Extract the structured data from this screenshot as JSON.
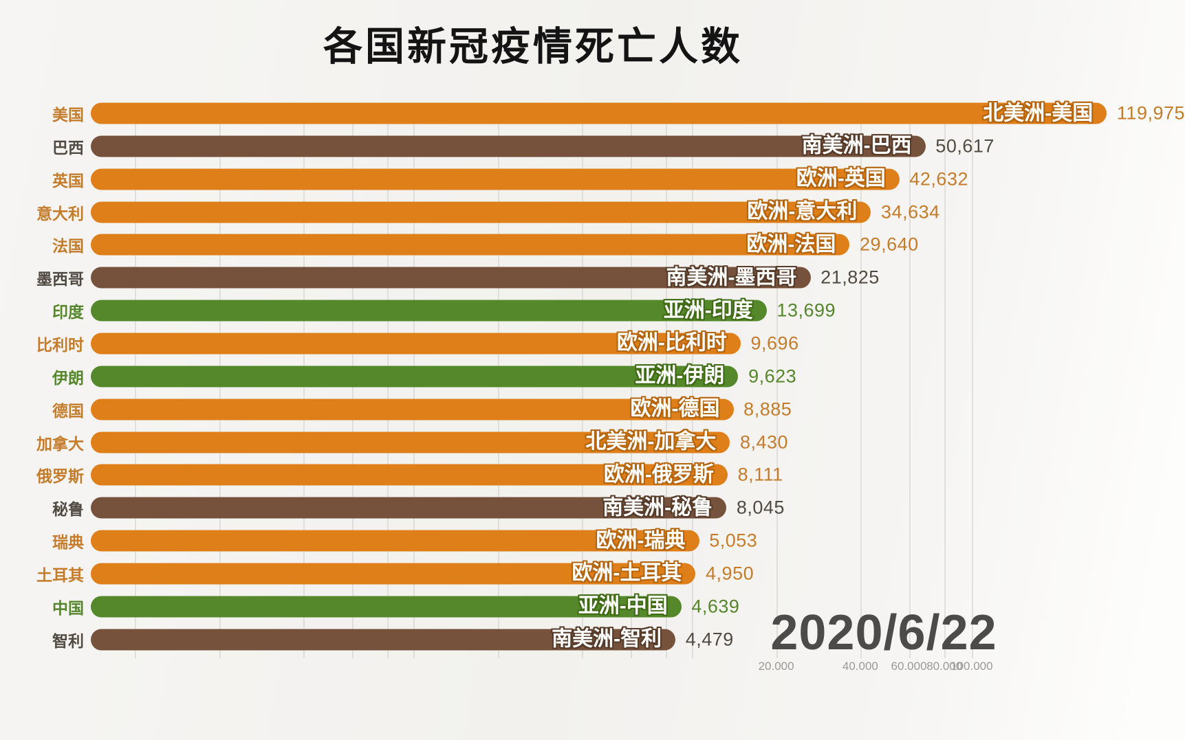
{
  "colors": {
    "title": "#141414",
    "date": "#4C4B49",
    "tick": "#9B9995",
    "gridline": "#DCDAD6",
    "groups": {
      "orange": {
        "bar": "#DE7F1A",
        "outline": "#B5650E",
        "text": "#C47C2B"
      },
      "brown": {
        "bar": "#76523C",
        "outline": "#573B29",
        "text": "#504A42"
      },
      "green": {
        "bar": "#55882A",
        "outline": "#3F6B14",
        "text": "#55862B"
      }
    }
  },
  "chart_data": {
    "type": "bar",
    "orientation": "horizontal",
    "title": "各国新冠疫情死亡人数",
    "date_label": "2020/6/22",
    "legend": "color encodes continent: orange = 欧洲/北美洲, brown = 南美洲, green = 亚洲",
    "x_axis": {
      "scale": "log-like (animated bar-race frame)",
      "ticks": [
        {
          "label": "20.000",
          "value": 20000,
          "pos_pct": 65.5
        },
        {
          "label": "40.000",
          "value": 40000,
          "pos_pct": 72.6
        },
        {
          "label": "60.000",
          "value": 60000,
          "pos_pct": 76.7
        },
        {
          "label": "80.000",
          "value": 80000,
          "pos_pct": 79.7
        },
        {
          "label": "100.000",
          "value": 100000,
          "pos_pct": 82.0
        }
      ]
    },
    "grid_minor_pct": [
      11.4,
      18.5,
      25.6,
      29.7,
      32.7,
      34.9,
      42.0,
      49.1,
      53.2,
      56.2,
      58.4
    ],
    "bar_left_pct": 7.66,
    "bars": [
      {
        "rank": 1,
        "country": "美国",
        "continent": "北美洲",
        "bar_label": "北美洲-美国",
        "value": 119975,
        "value_label": "119,975",
        "group": "orange",
        "tip_pct": 93.4
      },
      {
        "rank": 2,
        "country": "巴西",
        "continent": "南美洲",
        "bar_label": "南美洲-巴西",
        "value": 50617,
        "value_label": "50,617",
        "group": "brown",
        "tip_pct": 78.1
      },
      {
        "rank": 3,
        "country": "英国",
        "continent": "欧洲",
        "bar_label": "欧洲-英国",
        "value": 42632,
        "value_label": "42,632",
        "group": "orange",
        "tip_pct": 75.9
      },
      {
        "rank": 4,
        "country": "意大利",
        "continent": "欧洲",
        "bar_label": "欧洲-意大利",
        "value": 34634,
        "value_label": "34,634",
        "group": "orange",
        "tip_pct": 73.5
      },
      {
        "rank": 5,
        "country": "法国",
        "continent": "欧洲",
        "bar_label": "欧洲-法国",
        "value": 29640,
        "value_label": "29,640",
        "group": "orange",
        "tip_pct": 71.7
      },
      {
        "rank": 6,
        "country": "墨西哥",
        "continent": "南美洲",
        "bar_label": "南美洲-墨西哥",
        "value": 21825,
        "value_label": "21,825",
        "group": "brown",
        "tip_pct": 68.4
      },
      {
        "rank": 7,
        "country": "印度",
        "continent": "亚洲",
        "bar_label": "亚洲-印度",
        "value": 13699,
        "value_label": "13,699",
        "group": "green",
        "tip_pct": 64.7
      },
      {
        "rank": 8,
        "country": "比利时",
        "continent": "欧洲",
        "bar_label": "欧洲-比利时",
        "value": 9696,
        "value_label": "9,696",
        "group": "orange",
        "tip_pct": 62.5
      },
      {
        "rank": 9,
        "country": "伊朗",
        "continent": "亚洲",
        "bar_label": "亚洲-伊朗",
        "value": 9623,
        "value_label": "9,623",
        "group": "green",
        "tip_pct": 62.3
      },
      {
        "rank": 10,
        "country": "德国",
        "continent": "欧洲",
        "bar_label": "欧洲-德国",
        "value": 8885,
        "value_label": "8,885",
        "group": "orange",
        "tip_pct": 61.9
      },
      {
        "rank": 11,
        "country": "加拿大",
        "continent": "北美洲",
        "bar_label": "北美洲-加拿大",
        "value": 8430,
        "value_label": "8,430",
        "group": "orange",
        "tip_pct": 61.6
      },
      {
        "rank": 12,
        "country": "俄罗斯",
        "continent": "欧洲",
        "bar_label": "欧洲-俄罗斯",
        "value": 8111,
        "value_label": "8,111",
        "group": "orange",
        "tip_pct": 61.4
      },
      {
        "rank": 13,
        "country": "秘鲁",
        "continent": "南美洲",
        "bar_label": "南美洲-秘鲁",
        "value": 8045,
        "value_label": "8,045",
        "group": "brown",
        "tip_pct": 61.3
      },
      {
        "rank": 14,
        "country": "瑞典",
        "continent": "欧洲",
        "bar_label": "欧洲-瑞典",
        "value": 5053,
        "value_label": "5,053",
        "group": "orange",
        "tip_pct": 59.0
      },
      {
        "rank": 15,
        "country": "土耳其",
        "continent": "欧洲",
        "bar_label": "欧洲-土耳其",
        "value": 4950,
        "value_label": "4,950",
        "group": "orange",
        "tip_pct": 58.7
      },
      {
        "rank": 16,
        "country": "中国",
        "continent": "亚洲",
        "bar_label": "亚洲-中国",
        "value": 4639,
        "value_label": "4,639",
        "group": "green",
        "tip_pct": 57.5
      },
      {
        "rank": 17,
        "country": "智利",
        "continent": "南美洲",
        "bar_label": "南美洲-智利",
        "value": 4479,
        "value_label": "4,479",
        "group": "brown",
        "tip_pct": 57.0
      }
    ]
  }
}
